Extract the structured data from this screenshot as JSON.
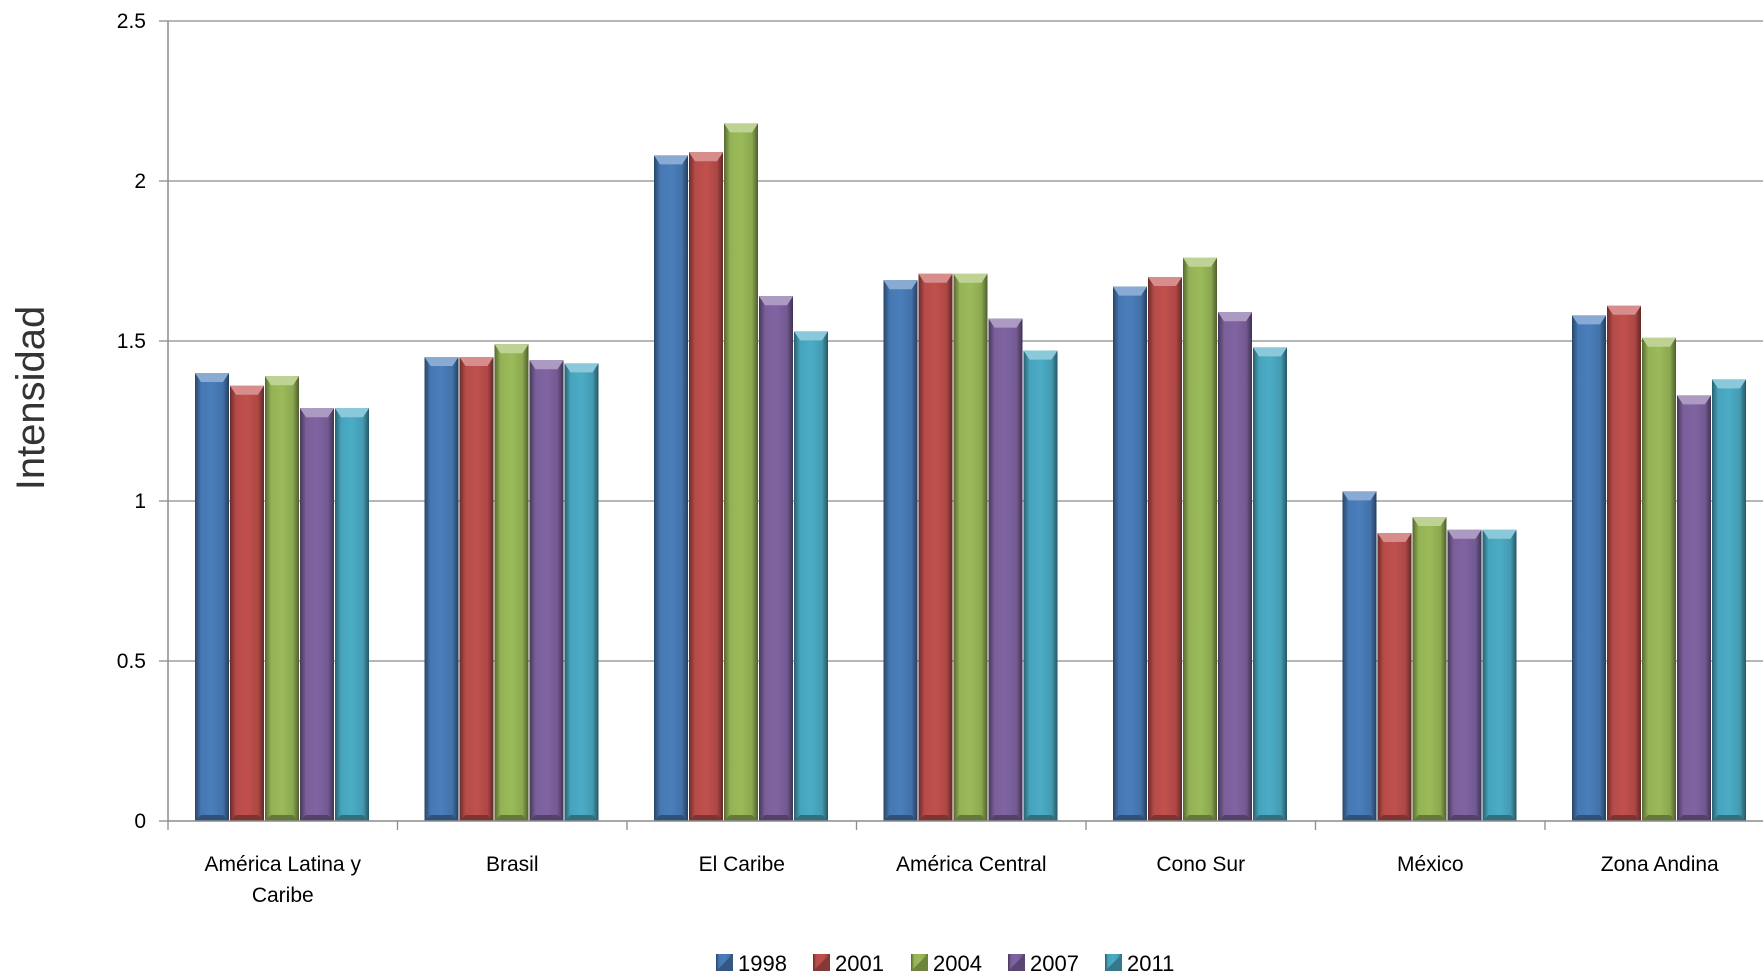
{
  "chart_data": {
    "type": "bar",
    "title": "",
    "xlabel": "",
    "ylabel": "Intensidad",
    "ylim": [
      0,
      2.5
    ],
    "yticks": [
      "0",
      "0.5",
      "1",
      "1.5",
      "2",
      "2.5"
    ],
    "grid": true,
    "legend_position": "bottom",
    "categories": [
      [
        "América Latina y",
        "Caribe"
      ],
      [
        "Brasil"
      ],
      [
        "El Caribe"
      ],
      [
        "América Central"
      ],
      [
        "Cono Sur"
      ],
      [
        "México"
      ],
      [
        "Zona Andina"
      ]
    ],
    "series": [
      {
        "name": "1998",
        "color": "#4a7ebb",
        "values": [
          1.4,
          1.45,
          2.08,
          1.69,
          1.67,
          1.03,
          1.58
        ]
      },
      {
        "name": "2001",
        "color": "#c0504d",
        "values": [
          1.36,
          1.45,
          2.09,
          1.71,
          1.7,
          0.9,
          1.61
        ]
      },
      {
        "name": "2004",
        "color": "#9bbb59",
        "values": [
          1.39,
          1.49,
          2.18,
          1.71,
          1.76,
          0.95,
          1.51
        ]
      },
      {
        "name": "2007",
        "color": "#8064a2",
        "values": [
          1.29,
          1.44,
          1.64,
          1.57,
          1.59,
          0.91,
          1.33
        ]
      },
      {
        "name": "2011",
        "color": "#4bacc6",
        "values": [
          1.29,
          1.43,
          1.53,
          1.47,
          1.48,
          0.91,
          1.38
        ]
      }
    ]
  }
}
